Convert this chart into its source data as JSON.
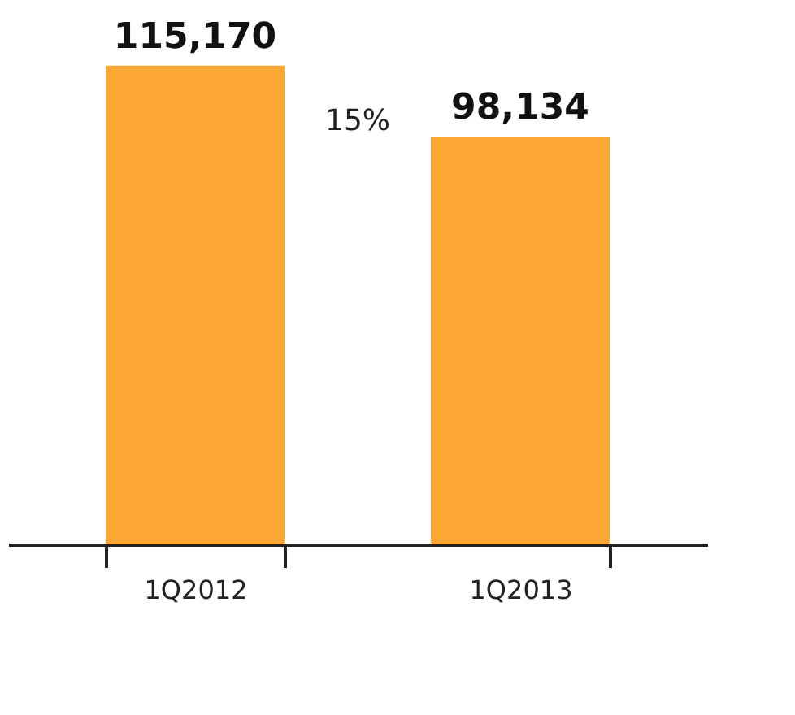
{
  "chart_data": {
    "type": "bar",
    "categories": [
      "1Q2012",
      "1Q2013"
    ],
    "series": [
      {
        "color": "#fca733",
        "values": [
          115170,
          98134
        ],
        "value_labels": [
          "115,170",
          "98,134"
        ]
      }
    ],
    "annotations": [
      "15%"
    ],
    "grid": false
  }
}
